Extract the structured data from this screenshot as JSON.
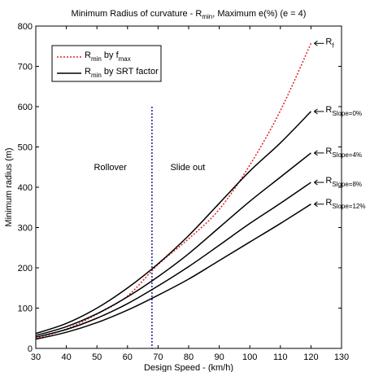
{
  "chart_data": {
    "type": "line",
    "title_parts": {
      "a": "Minimum Radius of curvature - R",
      "a_sub": "min",
      "b": ", Maximum e(%) (e = 4)"
    },
    "xlabel": "Design Speed - (km/h)",
    "ylabel": "Minimum radius (m)",
    "xlim": [
      30,
      130
    ],
    "ylim": [
      0,
      800
    ],
    "xticks": [
      30,
      40,
      50,
      60,
      70,
      80,
      90,
      100,
      110,
      120,
      130
    ],
    "yticks": [
      0,
      100,
      200,
      300,
      400,
      500,
      600,
      700,
      800
    ],
    "grid": false,
    "legend_position": "top-left",
    "series": [
      {
        "key": "rf",
        "color": "#e02020",
        "dash": "2,2",
        "legend": {
          "main": "R",
          "sub": "min",
          "rest": " by f",
          "rest_sub": "max"
        },
        "label_main": "R",
        "label_sub": "f",
        "x": [
          30,
          40,
          50,
          60,
          70,
          80,
          90,
          100,
          110,
          120
        ],
        "y": [
          25,
          48,
          85,
          130,
          208,
          272,
          345,
          455,
          590,
          757
        ]
      },
      {
        "key": "s0",
        "color": "#000000",
        "dash": "",
        "legend": {
          "main": "R",
          "sub": "min",
          "rest": " by SRT factor",
          "rest_sub": ""
        },
        "label_main": "R",
        "label_sub": "Slope=0%",
        "x": [
          30,
          40,
          50,
          60,
          70,
          80,
          90,
          100,
          110,
          120
        ],
        "y": [
          37,
          62,
          100,
          150,
          210,
          280,
          360,
          440,
          510,
          588
        ]
      },
      {
        "key": "s4",
        "color": "#000000",
        "dash": "",
        "legend": null,
        "label_main": "R",
        "label_sub": "Slope=4%",
        "x": [
          30,
          40,
          50,
          60,
          70,
          80,
          90,
          100,
          110,
          120
        ],
        "y": [
          32,
          54,
          86,
          128,
          178,
          235,
          300,
          365,
          425,
          485
        ]
      },
      {
        "key": "s8",
        "color": "#000000",
        "dash": "",
        "legend": null,
        "label_main": "R",
        "label_sub": "Slope=8%",
        "x": [
          30,
          40,
          50,
          60,
          70,
          80,
          90,
          100,
          110,
          120
        ],
        "y": [
          28,
          47,
          75,
          111,
          155,
          203,
          256,
          310,
          360,
          412
        ]
      },
      {
        "key": "s12",
        "color": "#000000",
        "dash": "",
        "legend": null,
        "label_main": "R",
        "label_sub": "Slope=12%",
        "x": [
          30,
          40,
          50,
          60,
          70,
          80,
          90,
          100,
          110,
          120
        ],
        "y": [
          23,
          40,
          64,
          95,
          132,
          172,
          218,
          264,
          310,
          358
        ]
      }
    ],
    "vline": {
      "x": 68,
      "y_top": 600,
      "color": "#1a1aa0",
      "dash": "2,2"
    },
    "region_labels": {
      "left": "Rollover",
      "right": "Slide out"
    }
  }
}
